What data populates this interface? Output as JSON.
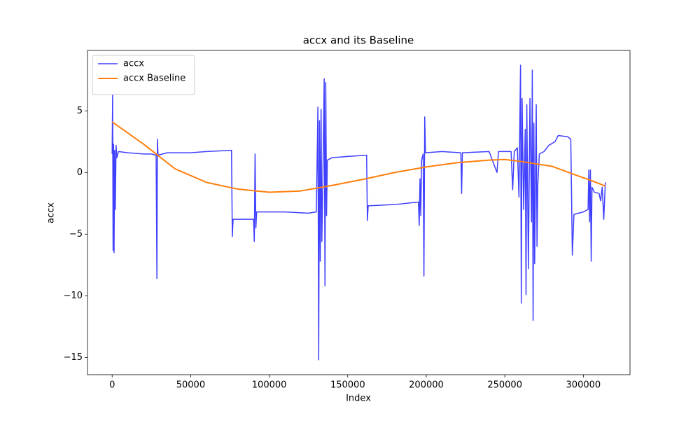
{
  "chart_data": {
    "type": "line",
    "title": "accx and its Baseline",
    "xlabel": "Index",
    "ylabel": "accx",
    "xlim": [
      -15700,
      329700
    ],
    "ylim": [
      -16.4,
      9.9
    ],
    "xticks": [
      0,
      50000,
      100000,
      150000,
      200000,
      250000,
      300000
    ],
    "yticks": [
      {
        "value": -15,
        "label": "−15"
      },
      {
        "value": -10,
        "label": "−10"
      },
      {
        "value": -5,
        "label": "−5"
      },
      0,
      5
    ],
    "legend": "upper left",
    "series": [
      {
        "name": "accx",
        "color": "#4040ff",
        "width": 1.5,
        "x": [
          0,
          300,
          600,
          900,
          1200,
          1600,
          2000,
          2500,
          3000,
          4000,
          10000,
          20000,
          25000,
          28000,
          28500,
          28800,
          29200,
          35000,
          50000,
          60000,
          76000,
          76500,
          77000,
          90000,
          90500,
          91000,
          91500,
          92000,
          110000,
          125000,
          130000,
          131000,
          131500,
          132000,
          132500,
          133000,
          133500,
          134000,
          135000,
          135500,
          136000,
          136500,
          137000,
          140000,
          150000,
          162000,
          162500,
          163000,
          180000,
          195000,
          195500,
          196000,
          196500,
          197000,
          198000,
          198500,
          199000,
          199500,
          210000,
          222000,
          222500,
          223000,
          240000,
          245000,
          246000,
          254000,
          255000,
          256000,
          258000,
          259000,
          260000,
          260500,
          261000,
          262000,
          263000,
          263500,
          264000,
          265000,
          266000,
          267000,
          267500,
          268000,
          268500,
          269000,
          270000,
          270500,
          271000,
          272000,
          275000,
          278000,
          282000,
          284000,
          290000,
          292000,
          293000,
          294000,
          300000,
          303000,
          303500,
          304000,
          304500,
          305000,
          305500,
          307000,
          310000,
          311000,
          312000,
          313000,
          314000
        ],
        "values": [
          1.5,
          6.3,
          -6.3,
          2.3,
          -6.5,
          1.8,
          -3,
          2.2,
          1.2,
          1.7,
          1.6,
          1.5,
          1.5,
          1.4,
          -8.6,
          2.7,
          1.4,
          1.6,
          1.6,
          1.7,
          1.8,
          -5.2,
          -3.8,
          -3.8,
          -5.6,
          1.5,
          -4.5,
          -3.2,
          -3.2,
          -3.3,
          -3.2,
          5.3,
          -15.2,
          4.2,
          -7.2,
          5.1,
          -5.6,
          -2,
          7.6,
          -9.2,
          7.3,
          -3.5,
          1.0,
          1.2,
          1.3,
          1.4,
          -3.9,
          -2.7,
          -2.6,
          -2.4,
          -4.3,
          -0.5,
          -3.5,
          1.0,
          1.5,
          -8.4,
          4.5,
          1.6,
          1.7,
          1.6,
          -1.7,
          1.6,
          1.7,
          0.0,
          1.7,
          1.7,
          -1.4,
          1.7,
          2.0,
          -2,
          8.7,
          -10.6,
          6,
          -3,
          3.5,
          -9.9,
          5.5,
          -7.8,
          6,
          -4,
          8.3,
          -12.0,
          4,
          -7.4,
          5.5,
          -6,
          -1,
          1.5,
          1.7,
          2.2,
          2.5,
          3.0,
          2.9,
          2.7,
          -6.7,
          -3.4,
          -3.2,
          -3.0,
          0.2,
          -4,
          0.2,
          -7.2,
          -1.2,
          -1.6,
          -1.7,
          -2.3,
          -1.2,
          -3.8,
          -0.8
        ]
      },
      {
        "name": "accx Baseline",
        "color": "#ff7f0e",
        "width": 2,
        "x": [
          0,
          20000,
          40000,
          60000,
          80000,
          100000,
          120000,
          140000,
          160000,
          180000,
          200000,
          220000,
          240000,
          250000,
          260000,
          280000,
          295000,
          305000,
          314000
        ],
        "values": [
          4.1,
          2.3,
          0.3,
          -0.8,
          -1.35,
          -1.6,
          -1.5,
          -1.05,
          -0.55,
          0,
          0.45,
          0.8,
          1.0,
          1.05,
          0.9,
          0.5,
          -0.2,
          -0.65,
          -1.1
        ]
      }
    ]
  }
}
